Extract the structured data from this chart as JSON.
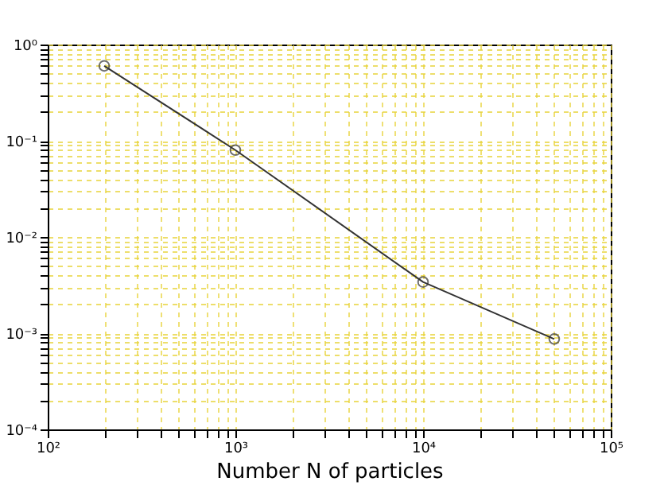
{
  "chart_data": {
    "type": "line",
    "xlabel": "Number N of particles",
    "x": [
      200,
      1000,
      10000,
      50000
    ],
    "series": [
      {
        "color": "#333333",
        "values": [
          0.6,
          0.08,
          0.0034,
          0.00087
        ]
      }
    ],
    "log": "xy",
    "marker": "circle",
    "line_style": "solid",
    "grid": true,
    "xlim": [
      100,
      100000
    ],
    "ylim": [
      0.0001,
      1
    ],
    "xticks": [
      {
        "value": 100,
        "label": "10²"
      },
      {
        "value": 1000,
        "label": "10³"
      },
      {
        "value": 10000,
        "label": "10⁴"
      },
      {
        "value": 100000,
        "label": "10⁵"
      }
    ],
    "yticks": [
      {
        "value": 0.0001,
        "label": "10⁻⁴"
      },
      {
        "value": 0.001,
        "label": "10⁻³"
      },
      {
        "value": 0.01,
        "label": "10⁻²"
      },
      {
        "value": 0.1,
        "label": "10⁻¹"
      },
      {
        "value": 1,
        "label": "10⁰"
      }
    ]
  }
}
